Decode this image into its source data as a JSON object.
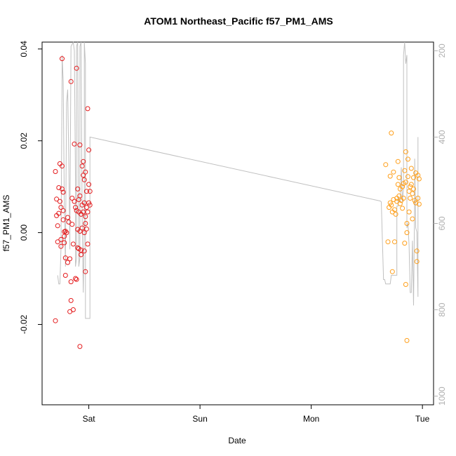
{
  "chart_data": {
    "type": "scatter",
    "title": "ATOM1 Northeast_Pacific f57_PM1_AMS",
    "xlabel": "Date",
    "ylabel": "f57_PM1_AMS",
    "x_ticks": [
      "Sat",
      "Sun",
      "Mon",
      "Tue"
    ],
    "x_tick_positions_days": [
      1,
      2,
      3,
      4
    ],
    "xlim_days": [
      0.58,
      4.1
    ],
    "ylim": [
      -0.0375,
      0.0415
    ],
    "y_ticks": [
      -0.02,
      0.0,
      0.02,
      0.04
    ],
    "y_tick_labels": [
      "-0.02",
      "0.00",
      "0.02",
      "0.04"
    ],
    "right_axis": {
      "label": "",
      "reversed": true,
      "ylim": [
        1020,
        180
      ],
      "ticks": [
        200,
        400,
        600,
        800,
        1000
      ],
      "color": "#b0b0b0"
    },
    "grid": false,
    "legend": "none",
    "colors": {
      "series1": "#e41a1c",
      "series2": "#ff9f1a",
      "line": "#c0c0c0"
    },
    "series": [
      {
        "color": "#e41a1c",
        "points": [
          [
            0.7,
            0.0133
          ],
          [
            0.7,
            -0.0192
          ],
          [
            0.71,
            0.0073
          ],
          [
            0.71,
            0.0037
          ],
          [
            0.72,
            -0.002
          ],
          [
            0.72,
            0.0015
          ],
          [
            0.73,
            0.0042
          ],
          [
            0.73,
            0.0098
          ],
          [
            0.74,
            0.015
          ],
          [
            0.74,
            0.0068
          ],
          [
            0.75,
            -0.0015
          ],
          [
            0.75,
            0.0055
          ],
          [
            0.75,
            -0.003
          ],
          [
            0.76,
            0.0379
          ],
          [
            0.76,
            0.0145
          ],
          [
            0.76,
            0.0095
          ],
          [
            0.77,
            0.0028
          ],
          [
            0.77,
            0.0088
          ],
          [
            0.77,
            0.0048
          ],
          [
            0.78,
            0.0002
          ],
          [
            0.78,
            -0.0008
          ],
          [
            0.78,
            -0.0022
          ],
          [
            0.79,
            0.0003
          ],
          [
            0.79,
            -0.0093
          ],
          [
            0.79,
            -0.0055
          ],
          [
            0.8,
            0.0
          ],
          [
            0.81,
            -0.0065
          ],
          [
            0.81,
            0.0033
          ],
          [
            0.82,
            0.0023
          ],
          [
            0.83,
            -0.0057
          ],
          [
            0.83,
            -0.0172
          ],
          [
            0.84,
            -0.0107
          ],
          [
            0.84,
            0.0329
          ],
          [
            0.84,
            -0.0148
          ],
          [
            0.85,
            0.0018
          ],
          [
            0.85,
            0.0075
          ],
          [
            0.86,
            -0.0025
          ],
          [
            0.86,
            -0.0168
          ],
          [
            0.87,
            0.0193
          ],
          [
            0.87,
            0.0068
          ],
          [
            0.88,
            0.0055
          ],
          [
            0.88,
            -0.01
          ],
          [
            0.89,
            0.0048
          ],
          [
            0.89,
            0.0358
          ],
          [
            0.89,
            -0.0102
          ],
          [
            0.9,
            0.0007
          ],
          [
            0.9,
            -0.0033
          ],
          [
            0.9,
            0.0095
          ],
          [
            0.91,
            0.0072
          ],
          [
            0.91,
            0.0045
          ],
          [
            0.91,
            -0.0035
          ],
          [
            0.92,
            0.0191
          ],
          [
            0.92,
            0.008
          ],
          [
            0.92,
            0.0003
          ],
          [
            0.92,
            -0.0248
          ],
          [
            0.93,
            0.004
          ],
          [
            0.93,
            -0.0038
          ],
          [
            0.93,
            -0.0048
          ],
          [
            0.94,
            0.0145
          ],
          [
            0.94,
            0.001
          ],
          [
            0.94,
            0.006
          ],
          [
            0.95,
            0.0155
          ],
          [
            0.95,
            0.0125
          ],
          [
            0.95,
            0.0045
          ],
          [
            0.96,
            0.0
          ],
          [
            0.96,
            -0.004
          ],
          [
            0.96,
            0.0115
          ],
          [
            0.96,
            0.0065
          ],
          [
            0.97,
            0.0035
          ],
          [
            0.97,
            -0.0085
          ],
          [
            0.97,
            0.0132
          ],
          [
            0.97,
            0.002
          ],
          [
            0.98,
            0.0055
          ],
          [
            0.98,
            0.009
          ],
          [
            0.98,
            0.0008
          ],
          [
            0.99,
            0.027
          ],
          [
            0.99,
            -0.0025
          ],
          [
            0.99,
            0.0045
          ],
          [
            1.0,
            0.0065
          ],
          [
            1.0,
            0.0105
          ],
          [
            1.0,
            0.018
          ],
          [
            1.01,
            0.006
          ],
          [
            1.01,
            0.009
          ]
        ]
      },
      {
        "color": "#ff9f1a",
        "points": [
          [
            3.67,
            0.0148
          ],
          [
            3.69,
            -0.002
          ],
          [
            3.7,
            0.0055
          ],
          [
            3.71,
            0.0065
          ],
          [
            3.71,
            0.0123
          ],
          [
            3.72,
            0.0217
          ],
          [
            3.72,
            0.006
          ],
          [
            3.73,
            -0.0085
          ],
          [
            3.73,
            0.0045
          ],
          [
            3.74,
            0.0132
          ],
          [
            3.74,
            0.0072
          ],
          [
            3.75,
            -0.002
          ],
          [
            3.75,
            0.005
          ],
          [
            3.76,
            0.004
          ],
          [
            3.77,
            0.0075
          ],
          [
            3.77,
            0.0068
          ],
          [
            3.78,
            0.0105
          ],
          [
            3.78,
            0.0155
          ],
          [
            3.79,
            0.012
          ],
          [
            3.79,
            0.008
          ],
          [
            3.8,
            0.0063
          ],
          [
            3.8,
            0.0095
          ],
          [
            3.81,
            0.007
          ],
          [
            3.82,
            0.01
          ],
          [
            3.82,
            0.0053
          ],
          [
            3.83,
            0.0107
          ],
          [
            3.83,
            0.0075
          ],
          [
            3.84,
            0.0135
          ],
          [
            3.84,
            -0.0023
          ],
          [
            3.85,
            0.0176
          ],
          [
            3.85,
            0.011
          ],
          [
            3.85,
            -0.0113
          ],
          [
            3.86,
            0.0
          ],
          [
            3.86,
            -0.0235
          ],
          [
            3.86,
            0.002
          ],
          [
            3.87,
            0.016
          ],
          [
            3.87,
            0.0122
          ],
          [
            3.88,
            0.009
          ],
          [
            3.88,
            0.0045
          ],
          [
            3.89,
            0.01
          ],
          [
            3.89,
            0.0075
          ],
          [
            3.9,
            0.014
          ],
          [
            3.9,
            0.0105
          ],
          [
            3.91,
            0.0085
          ],
          [
            3.91,
            0.003
          ],
          [
            3.92,
            0.012
          ],
          [
            3.92,
            0.0095
          ],
          [
            3.93,
            0.007
          ],
          [
            3.94,
            0.013
          ],
          [
            3.94,
            0.0065
          ],
          [
            3.95,
            -0.004
          ],
          [
            3.95,
            -0.0063
          ],
          [
            3.96,
            0.0075
          ],
          [
            3.96,
            0.0125
          ],
          [
            3.97,
            0.0117
          ],
          [
            3.97,
            0.0062
          ]
        ]
      }
    ],
    "altitude_line": {
      "color": "#c0c0c0",
      "points": [
        [
          0.72,
          720
        ],
        [
          0.73,
          740
        ],
        [
          0.74,
          740
        ],
        [
          0.75,
          660
        ],
        [
          0.76,
          260
        ],
        [
          0.76,
          210
        ],
        [
          0.77,
          270
        ],
        [
          0.78,
          560
        ],
        [
          0.79,
          700
        ],
        [
          0.79,
          680
        ],
        [
          0.8,
          320
        ],
        [
          0.81,
          290
        ],
        [
          0.82,
          450
        ],
        [
          0.83,
          660
        ],
        [
          0.83,
          620
        ],
        [
          0.84,
          190
        ],
        [
          0.86,
          180
        ],
        [
          0.87,
          200
        ],
        [
          0.88,
          500
        ],
        [
          0.88,
          700
        ],
        [
          0.89,
          680
        ],
        [
          0.89,
          190
        ],
        [
          0.9,
          180
        ],
        [
          0.91,
          660
        ],
        [
          0.91,
          700
        ],
        [
          0.92,
          680
        ],
        [
          0.92,
          190
        ],
        [
          0.93,
          180
        ],
        [
          0.94,
          580
        ],
        [
          0.95,
          760
        ],
        [
          0.96,
          600
        ],
        [
          0.96,
          180
        ],
        [
          0.97,
          230
        ],
        [
          0.97,
          820
        ],
        [
          0.98,
          820
        ],
        [
          1.01,
          820
        ],
        [
          1.01,
          400
        ],
        [
          3.62,
          548
        ],
        [
          3.63,
          550
        ],
        [
          3.64,
          640
        ],
        [
          3.65,
          730
        ],
        [
          3.66,
          730
        ],
        [
          3.67,
          740
        ],
        [
          3.68,
          740
        ],
        [
          3.69,
          740
        ],
        [
          3.7,
          740
        ],
        [
          3.71,
          740
        ],
        [
          3.72,
          720
        ],
        [
          3.73,
          720
        ],
        [
          3.76,
          720
        ],
        [
          3.77,
          720
        ],
        [
          3.77,
          560
        ],
        [
          3.78,
          560
        ],
        [
          3.78,
          540
        ],
        [
          3.8,
          550
        ],
        [
          3.81,
          470
        ],
        [
          3.82,
          550
        ],
        [
          3.83,
          520
        ],
        [
          3.83,
          210
        ],
        [
          3.84,
          180
        ],
        [
          3.85,
          230
        ],
        [
          3.86,
          210
        ],
        [
          3.86,
          610
        ],
        [
          3.87,
          600
        ],
        [
          3.88,
          650
        ],
        [
          3.89,
          760
        ],
        [
          3.9,
          760
        ],
        [
          3.91,
          640
        ],
        [
          3.92,
          790
        ],
        [
          3.93,
          540
        ],
        [
          3.93,
          450
        ],
        [
          3.94,
          610
        ],
        [
          3.95,
          620
        ],
        [
          3.96,
          770
        ],
        [
          3.96,
          400
        ]
      ]
    }
  }
}
